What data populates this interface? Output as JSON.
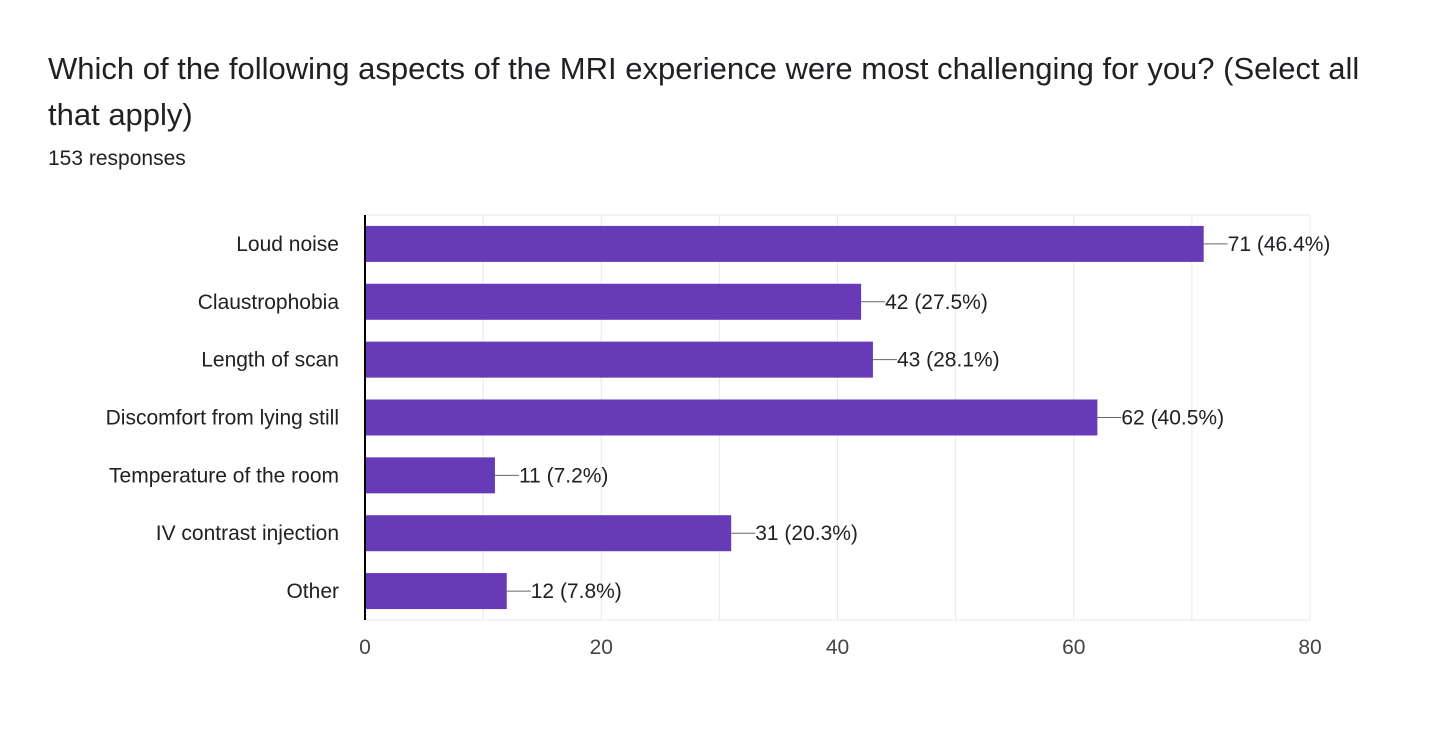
{
  "header": {
    "question": "Which of the following aspects of the MRI experience were most challenging for you? (Select all that apply)",
    "responses": "153 responses"
  },
  "colors": {
    "bar": "#673ab7",
    "grid": "#e8e8e8",
    "axis": "#000000",
    "leader": "#666666"
  },
  "chart_data": {
    "type": "bar",
    "orientation": "horizontal",
    "categories": [
      "Loud noise",
      "Claustrophobia",
      "Length of scan",
      "Discomfort from lying still",
      "Temperature of the room",
      "IV contrast injection",
      "Other"
    ],
    "values": [
      71,
      42,
      43,
      62,
      11,
      31,
      12
    ],
    "data_labels": [
      "71 (46.4%)",
      "42 (27.5%)",
      "43 (28.1%)",
      "62 (40.5%)",
      "11 (7.2%)",
      "31 (20.3%)",
      "12 (7.8%)"
    ],
    "xlim": [
      0,
      80
    ],
    "xticks": [
      0,
      20,
      40,
      60,
      80
    ],
    "grid": true,
    "legend": "none"
  }
}
